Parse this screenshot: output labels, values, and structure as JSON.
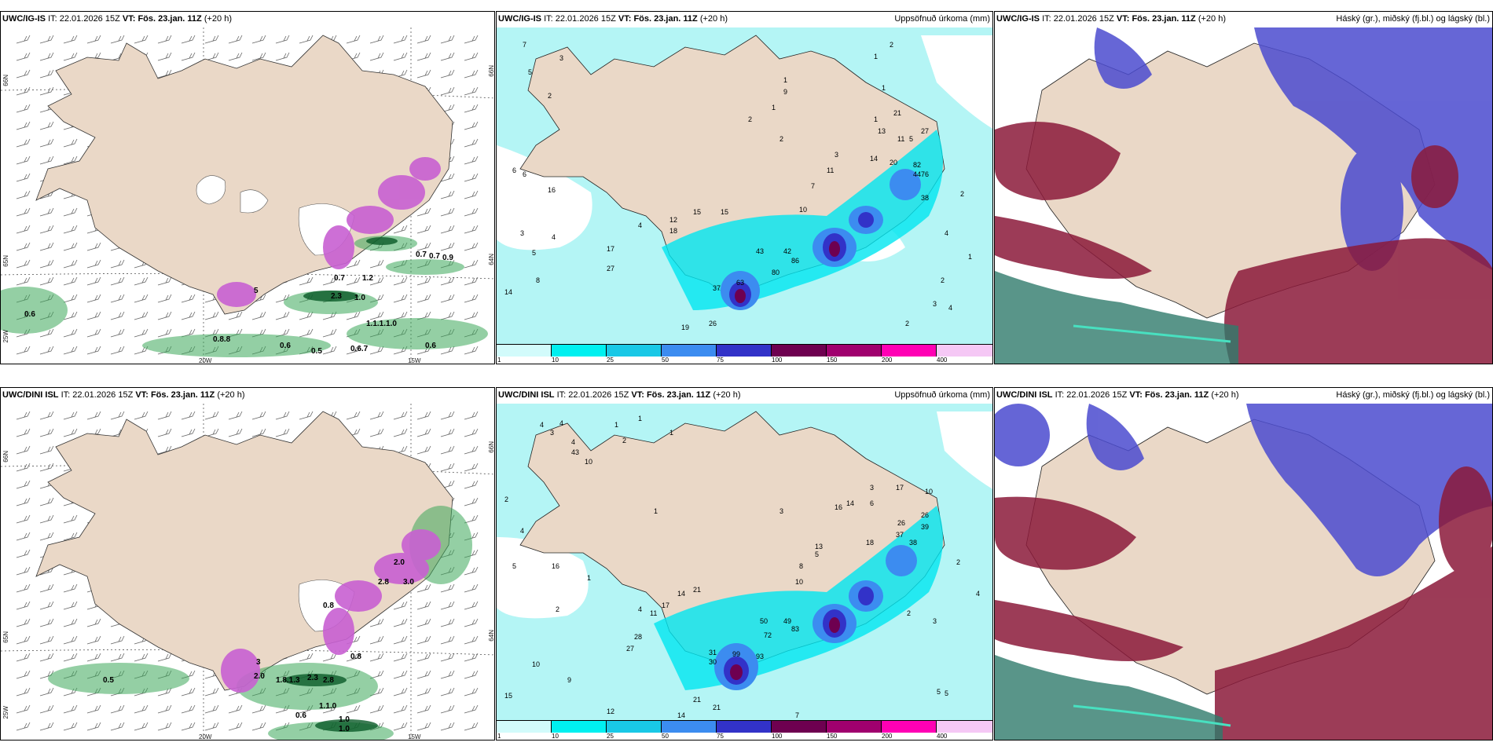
{
  "rows": [
    {
      "left": {
        "model": "UWC/IG-IS",
        "it_label": "IT:",
        "it": "22.01.2026 15Z",
        "vt_label": "VT:",
        "vt": "Fös. 23.jan. 11Z",
        "lead": "(+20 h)",
        "lat_labels": [
          "66N",
          "65N",
          "25W"
        ],
        "lon_labels": [
          "20W",
          "15W"
        ],
        "lat_right": [
          "66N",
          "64N"
        ],
        "values": [
          "0.6",
          "0.8.8",
          "0.6",
          "0.5",
          "0.6.7",
          "0.6",
          "2.3",
          "1.0",
          "1.1.1.1.0",
          "0.7",
          "0.7",
          "0.9",
          "0.7",
          "1.2",
          "5"
        ]
      },
      "middle": {
        "model": "UWC/IG-IS",
        "it_label": "IT:",
        "it": "22.01.2026 15Z",
        "vt_label": "VT:",
        "vt": "Fös. 23.jan. 11Z",
        "lead": "(+20 h)",
        "title_right": "Uppsöfnuð úrkoma (mm)",
        "values": [
          "7",
          "5",
          "3",
          "2",
          "6",
          "6",
          "16",
          "3",
          "4",
          "5",
          "8",
          "14",
          "27",
          "17",
          "4",
          "12",
          "18",
          "15",
          "15",
          "37",
          "63",
          "19",
          "26",
          "43",
          "42",
          "80",
          "86",
          "10",
          "7",
          "11",
          "3",
          "14",
          "13",
          "20",
          "21",
          "11",
          "5",
          "27",
          "44",
          "82",
          "76",
          "38",
          "2",
          "4",
          "1",
          "2",
          "3",
          "4",
          "2",
          "2",
          "1",
          "1",
          "1",
          "9",
          "1",
          "2",
          "2",
          "1"
        ]
      },
      "right": {
        "model": "UWC/IG-IS",
        "it_label": "IT:",
        "it": "22.01.2026 15Z",
        "vt_label": "VT:",
        "vt": "Fös. 23.jan. 11Z",
        "lead": "(+20 h)",
        "title_right": "Háský (gr.), miðský (fj.bl.) og lágský (bl.)"
      }
    },
    {
      "left": {
        "model": "UWC/DINI ISL",
        "it_label": "IT:",
        "it": "22.01.2026 15Z",
        "vt_label": "VT:",
        "vt": "Fös. 23.jan. 11Z",
        "lead": "(+20 h)",
        "lat_labels": [
          "66N",
          "65N",
          "25W"
        ],
        "lon_labels": [
          "20W",
          "15W"
        ],
        "lat_right": [
          "66N",
          "64N"
        ],
        "values": [
          "0.5",
          "3",
          "2.0",
          "1.8.1.3",
          "2.3",
          "2.8",
          "1.1.0",
          "1.0",
          "0.6",
          "1.0",
          "0.8",
          "2.0",
          "0.8",
          "3.0",
          "2.8"
        ]
      },
      "middle": {
        "model": "UWC/DINI ISL",
        "it_label": "IT:",
        "it": "22.01.2026 15Z",
        "vt_label": "VT:",
        "vt": "Fös. 23.jan. 11Z",
        "lead": "(+20 h)",
        "title_right": "Uppsöfnuð úrkoma (mm)",
        "values": [
          "4",
          "3",
          "4",
          "4",
          "43",
          "10",
          "2",
          "4",
          "5",
          "16",
          "2",
          "4",
          "1",
          "14",
          "21",
          "17",
          "11",
          "28",
          "27",
          "10",
          "9",
          "15",
          "12",
          "31",
          "30",
          "99",
          "72",
          "93",
          "50",
          "49",
          "83",
          "21",
          "21",
          "14",
          "10",
          "8",
          "5",
          "13",
          "16",
          "14",
          "18",
          "26",
          "37",
          "38",
          "39",
          "26",
          "17",
          "10",
          "6",
          "3",
          "2",
          "4",
          "3",
          "2",
          "5",
          "5",
          "7",
          "1",
          "1",
          "1",
          "2",
          "1",
          "3"
        ]
      },
      "right": {
        "model": "UWC/DINI ISL",
        "it_label": "IT:",
        "it": "22.01.2026 15Z",
        "vt_label": "VT:",
        "vt": "Fös. 23.jan. 11Z",
        "lead": "(+20 h)",
        "title_right": "Háský (gr.), miðský (fj.bl.) og lágský (bl.)"
      }
    }
  ],
  "colorbar": {
    "labels": [
      "1",
      "10",
      "25",
      "50",
      "75",
      "100",
      "150",
      "200",
      "400"
    ],
    "colors": [
      "#d2fbfb",
      "#00f0f0",
      "#19c8e6",
      "#3c8cf0",
      "#3232c8",
      "#6e0050",
      "#a0006e",
      "#ff00b4",
      "#f5c8f5"
    ]
  },
  "colors": {
    "land": "#ead8c7",
    "precip_light": "#b4f5f5",
    "precip_med": "#00e6f0",
    "high_cloud": "#2f7a6c",
    "mid_cloud": "#8b1a3a",
    "low_cloud": "#4b4bcf",
    "rain_green": "#3ca85a",
    "snow_magenta": "#c860d2"
  }
}
